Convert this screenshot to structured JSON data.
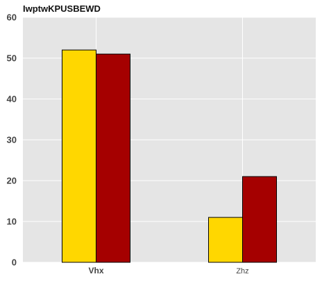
{
  "chart_data": {
    "type": "bar",
    "title": "IwptwKPUSBEWD",
    "xlabel": "",
    "ylabel": "",
    "categories": [
      "Vhx",
      "Zhz"
    ],
    "category_bold": [
      true,
      false
    ],
    "series": [
      {
        "values": [
          52,
          11
        ],
        "color": "#FFD700"
      },
      {
        "values": [
          51,
          21
        ],
        "color": "#A50000"
      }
    ],
    "ylim": [
      0,
      60
    ],
    "yticks": [
      0,
      10,
      20,
      30,
      40,
      50,
      60
    ],
    "grid": true,
    "background": "#E5E5E5",
    "legend": "none"
  }
}
